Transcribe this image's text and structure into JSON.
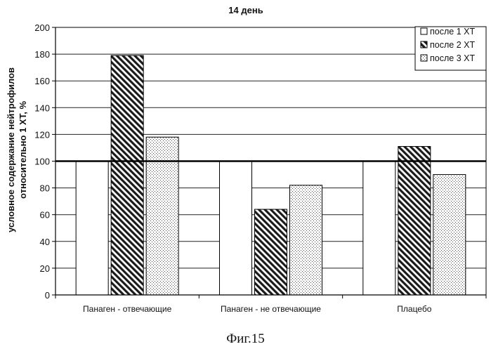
{
  "chart_data": {
    "type": "bar",
    "title": "14 день",
    "ylabel_line1": "условное содержание нейтрофилов",
    "ylabel_line2": "относительно 1 ХТ, %",
    "xlabel": "",
    "ylim": [
      0,
      200
    ],
    "ytick_step": 20,
    "yticks": [
      "0",
      "20",
      "40",
      "60",
      "80",
      "100",
      "120",
      "140",
      "160",
      "180",
      "200"
    ],
    "grid": true,
    "reference_line": 100,
    "legend_position": "top-right",
    "categories": [
      "Панаген - отвечающие",
      "Панаген - не отвечающие",
      "Плацебо"
    ],
    "series": [
      {
        "name": "после 1 ХТ",
        "pattern": "blank",
        "values": [
          100,
          100,
          100
        ]
      },
      {
        "name": "после 2 ХТ",
        "pattern": "hatch",
        "values": [
          179,
          64,
          111
        ]
      },
      {
        "name": "после 3 ХТ",
        "pattern": "dots",
        "values": [
          118,
          82,
          90
        ]
      }
    ]
  },
  "caption": "Фиг.15"
}
